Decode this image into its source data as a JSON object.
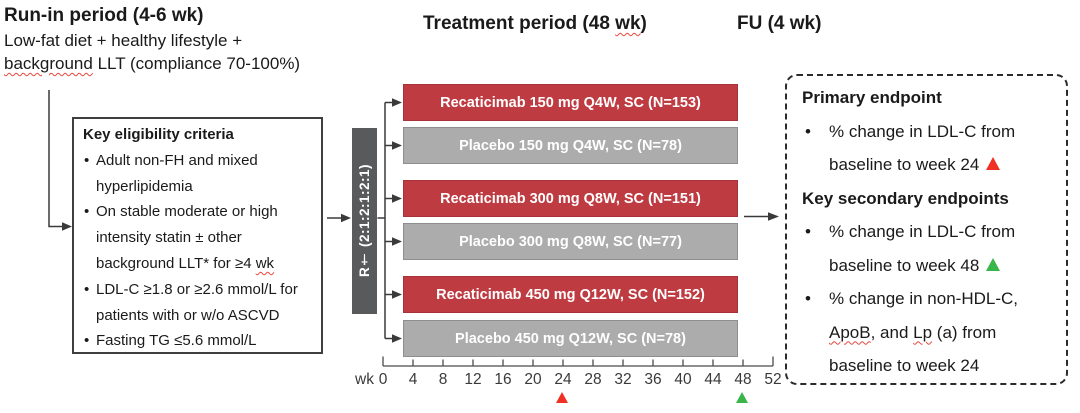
{
  "colors": {
    "drug_bar": "#bf3b42",
    "placebo_bar": "#acacac",
    "randomization_box": "#595a5c",
    "marker_red": "#ee3124",
    "marker_green": "#39b54a"
  },
  "headings": {
    "runin_title": "Run-in period (4-6 wk)",
    "runin_subtitle": "Low-fat diet + healthy lifestyle +\nbackground LLT (compliance 70-100%)",
    "treatment_title": "Treatment period (48 wk)",
    "fu_title": "FU (4 wk)"
  },
  "eligibility_box": {
    "title": "Key eligibility criteria",
    "items": [
      "Adult non-FH and mixed\nhyperlipidemia",
      "On stable moderate or high\nintensity statin ± other\nbackground LLT* for ≥4 wk",
      "LDL-C ≥1.8 or ≥2.6 mmol/L for\npatients with or w/o ASCVD",
      "Fasting TG ≤5.6 mmol/L"
    ]
  },
  "randomization": {
    "label": "R† (2:1:2:1:2:1)"
  },
  "arms": [
    {
      "label": "Recaticimab 150 mg Q4W, SC (N=153)",
      "type": "drug"
    },
    {
      "label": "Placebo 150 mg Q4W, SC (N=78)",
      "type": "placebo"
    },
    {
      "label": "Recaticimab 300 mg Q8W, SC (N=151)",
      "type": "drug"
    },
    {
      "label": "Placebo 300 mg Q8W, SC (N=77)",
      "type": "placebo"
    },
    {
      "label": "Recaticimab 450 mg Q12W, SC (N=152)",
      "type": "drug"
    },
    {
      "label": "Placebo 450 mg Q12W, SC (N=78)",
      "type": "placebo"
    }
  ],
  "timeline": {
    "unit_label": "wk",
    "ticks": [
      "0",
      "4",
      "8",
      "12",
      "16",
      "20",
      "24",
      "28",
      "32",
      "36",
      "40",
      "44",
      "48",
      "52"
    ],
    "markers": [
      {
        "week": "24",
        "color": "red"
      },
      {
        "week": "48",
        "color": "green"
      }
    ]
  },
  "endpoints_box": {
    "primary_title": "Primary endpoint",
    "primary_items": [
      {
        "text": "% change in LDL-C from\nbaseline to week 24",
        "marker": "red"
      }
    ],
    "secondary_title": "Key secondary endpoints",
    "secondary_items": [
      {
        "text": "% change in LDL-C from\nbaseline to week 48",
        "marker": "green"
      },
      {
        "text": "% change in non-HDL-C,\nApoB, and Lp (a) from\nbaseline to week 24",
        "marker": "none"
      }
    ]
  }
}
